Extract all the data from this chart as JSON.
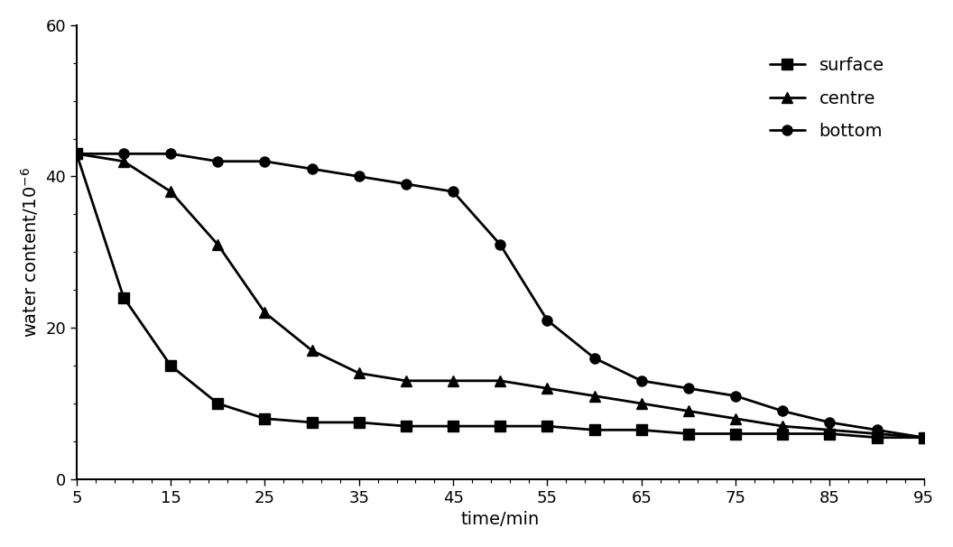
{
  "title": "",
  "xlabel": "time/min",
  "ylabel": "water content/10-6",
  "xlim": [
    5,
    95
  ],
  "ylim": [
    0,
    60
  ],
  "xticks": [
    5,
    15,
    25,
    35,
    45,
    55,
    65,
    75,
    85,
    95
  ],
  "yticks": [
    0,
    20,
    40,
    60
  ],
  "surface": {
    "x": [
      5,
      10,
      15,
      20,
      25,
      30,
      35,
      40,
      45,
      50,
      55,
      60,
      65,
      70,
      75,
      80,
      85,
      90,
      95
    ],
    "y": [
      43,
      24,
      15,
      10,
      8,
      7.5,
      7.5,
      7,
      7,
      7,
      7,
      6.5,
      6.5,
      6,
      6,
      6,
      6,
      5.5,
      5.5
    ],
    "marker": "s",
    "label": "surface"
  },
  "centre": {
    "x": [
      5,
      10,
      15,
      20,
      25,
      30,
      35,
      40,
      45,
      50,
      55,
      60,
      65,
      70,
      75,
      80,
      85,
      90,
      95
    ],
    "y": [
      43,
      42,
      38,
      31,
      22,
      17,
      14,
      13,
      13,
      13,
      12,
      11,
      10,
      9,
      8,
      7,
      6.5,
      6,
      5.5
    ],
    "marker": "^",
    "label": "centre"
  },
  "bottom": {
    "x": [
      5,
      10,
      15,
      20,
      25,
      30,
      35,
      40,
      45,
      50,
      55,
      60,
      65,
      70,
      75,
      80,
      85,
      90,
      95
    ],
    "y": [
      43,
      43,
      43,
      42,
      42,
      41,
      40,
      39,
      38,
      31,
      21,
      16,
      13,
      12,
      11,
      9,
      7.5,
      6.5,
      5.5
    ],
    "marker": "o",
    "label": "bottom"
  },
  "line_color": "#000000",
  "background_color": "#ffffff",
  "legend_fontsize": 14,
  "axis_label_fontsize": 14,
  "tick_fontsize": 13,
  "linewidth": 2.0,
  "markersize": 8
}
